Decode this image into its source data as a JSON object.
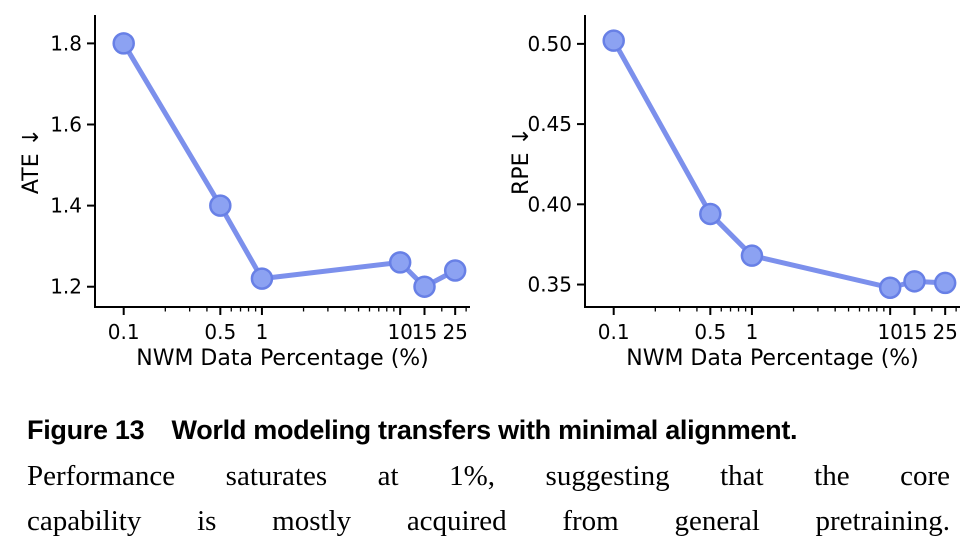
{
  "figure": {
    "caption": {
      "label": "Figure 13",
      "title": "World modeling transfers with minimal alignment.",
      "body_lines": [
        "Performance saturates at 1%, suggesting that the core",
        "capability is mostly acquired from general pretraining."
      ]
    }
  },
  "colors": {
    "line": "#7c90ec",
    "marker_fill": "#8ca2f2",
    "marker_edge": "#6880e6",
    "axis": "#000000",
    "text": "#000000",
    "background": "#ffffff"
  },
  "chart_data": [
    {
      "type": "line",
      "name": "ate-vs-nwm-data-percentage",
      "title": "",
      "xlabel": "NWM Data Percentage (%)",
      "ylabel": "ATE ↓",
      "xscale": "log",
      "x": [
        0.1,
        0.5,
        1,
        10,
        15,
        25
      ],
      "values": [
        1.8,
        1.4,
        1.22,
        1.26,
        1.2,
        1.24
      ],
      "xticks": [
        0.1,
        0.5,
        1,
        10,
        15,
        25
      ],
      "xtick_labels": [
        "0.1",
        "0.5",
        "1",
        "10",
        "15",
        "25"
      ],
      "yticks": [
        1.2,
        1.4,
        1.6,
        1.8
      ],
      "ytick_labels": [
        "1.2",
        "1.4",
        "1.6",
        "1.8"
      ],
      "xlim": [
        0.062,
        32
      ],
      "ylim": [
        1.15,
        1.87
      ],
      "grid": false,
      "legend": null
    },
    {
      "type": "line",
      "name": "rpe-vs-nwm-data-percentage",
      "title": "",
      "xlabel": "NWM Data Percentage (%)",
      "ylabel": "RPE ↓",
      "xscale": "log",
      "x": [
        0.1,
        0.5,
        1,
        10,
        15,
        25
      ],
      "values": [
        0.502,
        0.394,
        0.368,
        0.348,
        0.352,
        0.351
      ],
      "xticks": [
        0.1,
        0.5,
        1,
        10,
        15,
        25
      ],
      "xtick_labels": [
        "0.1",
        "0.5",
        "1",
        "10",
        "15",
        "25"
      ],
      "yticks": [
        0.35,
        0.4,
        0.45,
        0.5
      ],
      "ytick_labels": [
        "0.35",
        "0.40",
        "0.45",
        "0.50"
      ],
      "xlim": [
        0.062,
        32
      ],
      "ylim": [
        0.336,
        0.518
      ],
      "grid": false,
      "legend": null
    }
  ]
}
